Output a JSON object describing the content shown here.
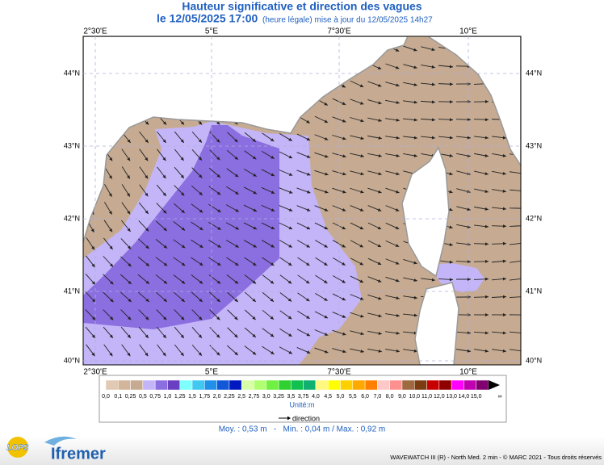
{
  "header": {
    "title": "Hauteur significative et direction des vagues",
    "date": "le 12/05/2025 17:00",
    "note": "(heure légale) mise à jour du 12/05/2025 14h27"
  },
  "map": {
    "lon_labels": [
      "2°30'E",
      "5°E",
      "7°30'E",
      "10°E"
    ],
    "lat_labels": [
      "44°N",
      "43°N",
      "42°N",
      "41°N",
      "40°N"
    ]
  },
  "legend": {
    "items": [
      {
        "label": "0,0",
        "color": "#e2c9b3"
      },
      {
        "label": "0,1",
        "color": "#d2b59a"
      },
      {
        "label": "0,25",
        "color": "#c6ab92"
      },
      {
        "label": "0,5",
        "color": "#c3b5f7"
      },
      {
        "label": "0,75",
        "color": "#8b6ee0"
      },
      {
        "label": "1,0",
        "color": "#6a3fc2"
      },
      {
        "label": "1,25",
        "color": "#80ffff"
      },
      {
        "label": "1,5",
        "color": "#40c8f0"
      },
      {
        "label": "1,75",
        "color": "#2090e8"
      },
      {
        "label": "2,0",
        "color": "#1058d8"
      },
      {
        "label": "2,25",
        "color": "#0018c0"
      },
      {
        "label": "2,5",
        "color": "#d8ffa8"
      },
      {
        "label": "2,75",
        "color": "#b0ff70"
      },
      {
        "label": "3,0",
        "color": "#70f040"
      },
      {
        "label": "3,25",
        "color": "#30d030"
      },
      {
        "label": "3,5",
        "color": "#10c050"
      },
      {
        "label": "3,75",
        "color": "#10b070"
      },
      {
        "label": "4,0",
        "color": "#fff880"
      },
      {
        "label": "4,5",
        "color": "#ffff00"
      },
      {
        "label": "5,0",
        "color": "#ffd000"
      },
      {
        "label": "5,5",
        "color": "#ffa800"
      },
      {
        "label": "6,0",
        "color": "#ff8000"
      },
      {
        "label": "7,0",
        "color": "#ffc8c8"
      },
      {
        "label": "8,0",
        "color": "#ff9090"
      },
      {
        "label": "9,0",
        "color": "#a06a40"
      },
      {
        "label": "10,0",
        "color": "#7a3c10"
      },
      {
        "label": "11,0",
        "color": "#c80000"
      },
      {
        "label": "12,0",
        "color": "#900000"
      },
      {
        "label": "13,0",
        "color": "#ff00ff"
      },
      {
        "label": "14,0",
        "color": "#c000b0"
      },
      {
        "label": "15,0",
        "color": "#800070"
      }
    ],
    "end_label": "∞",
    "unit": "Unité:m",
    "direction": "direction"
  },
  "stats": "Moy. : 0,53 m   -   Min. : 0,04 m / Max. : 0,92 m",
  "footer": {
    "credit": "WAVEWATCH III (R) - North Med. 2 min - © MARC 2021 - Tous droits réservés",
    "logos": [
      "LOPS",
      "Ifremer"
    ]
  }
}
